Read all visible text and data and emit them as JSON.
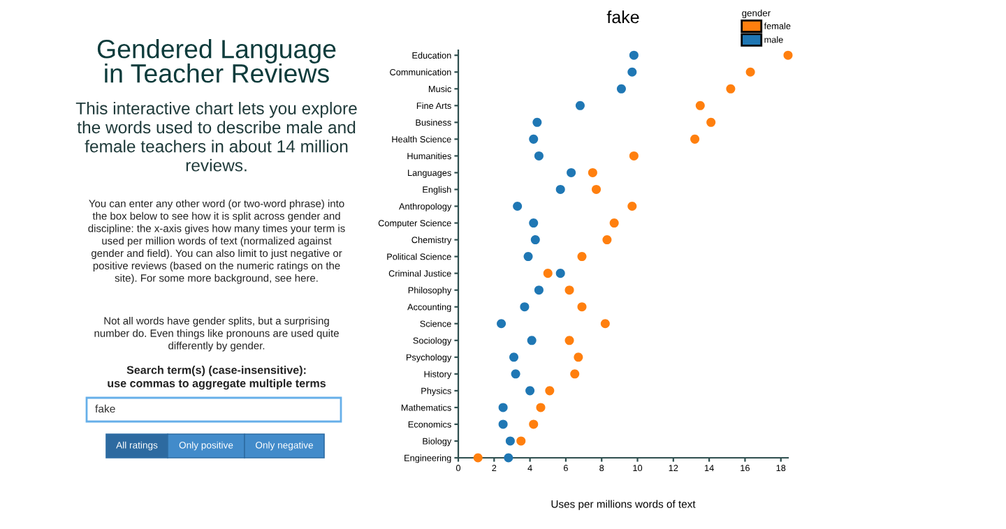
{
  "chart_data": {
    "type": "scatter",
    "title": "fake",
    "subtitle": "Gendered Language\nin Teacher Reviews",
    "xlabel": "Uses per millions words of text",
    "legend_title": "gender",
    "categories": [
      "Education",
      "Communication",
      "Music",
      "Fine Arts",
      "Business",
      "Health Science",
      "Humanities",
      "Languages",
      "English",
      "Anthropology",
      "Computer Science",
      "Chemistry",
      "Political Science",
      "Criminal Justice",
      "Philosophy",
      "Accounting",
      "Science",
      "Sociology",
      "Psychology",
      "History",
      "Physics",
      "Mathematics",
      "Economics",
      "Biology",
      "Engineering"
    ],
    "series": [
      {
        "name": "female",
        "color": "#ff7f0e",
        "values": [
          18.4,
          16.3,
          15.2,
          13.5,
          14.1,
          13.2,
          9.8,
          7.5,
          7.7,
          9.7,
          8.7,
          8.3,
          6.9,
          5.0,
          6.2,
          6.9,
          8.2,
          6.2,
          6.7,
          6.5,
          5.1,
          4.6,
          4.2,
          3.5,
          1.1
        ]
      },
      {
        "name": "male",
        "color": "#1f77b4",
        "values": [
          9.8,
          9.7,
          9.1,
          6.8,
          4.4,
          4.2,
          4.5,
          6.3,
          5.7,
          3.3,
          4.2,
          4.3,
          3.9,
          5.7,
          4.5,
          3.7,
          2.4,
          4.1,
          3.1,
          3.2,
          4.0,
          2.5,
          2.5,
          2.9,
          2.8
        ]
      }
    ],
    "orientation": "horizontal",
    "xlim": [
      0,
      18.4
    ],
    "xticks": [
      0,
      2,
      4,
      6,
      8,
      10,
      12,
      14,
      16,
      18
    ],
    "grid": false,
    "legend": "top right",
    "marker": "circle",
    "annotations": [
      "This interactive chart lets you explore\nthe words used to describe male and\nfemale teachers in about 14 million\nreviews.",
      "You can enter any other word (or two-word phrase) into\nthe box below to see how it is split across gender and\ndiscipline: the x-axis gives how many times your term is\nused per million words of text (normalized against\ngender and field). You can also limit to just negative or\npositive reviews (based on the numeric ratings on the\nsite). For some more background, see here.",
      "Not all words have gender splits, but a surprising\nnumber do. Even things like pronouns are used quite\ndifferently by gender.",
      "Search term(s) (case-insensitive):\nuse commas to aggregate multiple terms",
      "fake",
      "All ratings",
      "Only positive",
      "Only negative"
    ]
  }
}
